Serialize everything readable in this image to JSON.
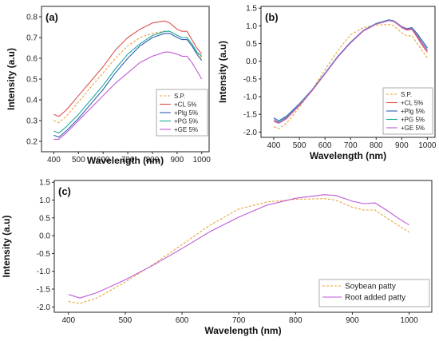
{
  "chart_data": [
    {
      "panel": "(a)",
      "type": "line",
      "xlabel": "Wavelength (nm)",
      "ylabel": "Intensity (a.u)",
      "xlim": [
        350,
        1030
      ],
      "ylim": [
        0.15,
        0.85
      ],
      "xticks": [
        400,
        500,
        600,
        700,
        800,
        900,
        1000
      ],
      "yticks": [
        0.2,
        0.3,
        0.4,
        0.5,
        0.6,
        0.7,
        0.8
      ],
      "legend_position": "bottom-right",
      "x": [
        400,
        420,
        450,
        500,
        550,
        600,
        650,
        700,
        750,
        800,
        850,
        870,
        900,
        920,
        940,
        960,
        980,
        1000
      ],
      "series": [
        {
          "name": "S.P.",
          "color": "#e8a33d",
          "dash": true,
          "values": [
            0.3,
            0.29,
            0.32,
            0.39,
            0.46,
            0.53,
            0.6,
            0.66,
            0.7,
            0.72,
            0.73,
            0.73,
            0.71,
            0.7,
            0.7,
            0.67,
            0.63,
            0.6
          ]
        },
        {
          "name": "+CL 5%",
          "color": "#d9534f",
          "dash": false,
          "values": [
            0.33,
            0.32,
            0.35,
            0.42,
            0.49,
            0.56,
            0.64,
            0.7,
            0.74,
            0.77,
            0.78,
            0.77,
            0.74,
            0.73,
            0.73,
            0.69,
            0.65,
            0.62
          ]
        },
        {
          "name": "+Plg 5%",
          "color": "#2f5fb3",
          "dash": false,
          "values": [
            0.23,
            0.22,
            0.25,
            0.31,
            0.38,
            0.45,
            0.53,
            0.6,
            0.66,
            0.7,
            0.72,
            0.72,
            0.7,
            0.69,
            0.69,
            0.66,
            0.62,
            0.59
          ]
        },
        {
          "name": "+PG 5%",
          "color": "#1fa89a",
          "dash": false,
          "values": [
            0.25,
            0.24,
            0.27,
            0.33,
            0.4,
            0.47,
            0.55,
            0.62,
            0.67,
            0.71,
            0.73,
            0.73,
            0.71,
            0.7,
            0.7,
            0.67,
            0.63,
            0.61
          ]
        },
        {
          "name": "+GE 5%",
          "color": "#c05ad6",
          "dash": false,
          "values": [
            0.21,
            0.21,
            0.24,
            0.3,
            0.36,
            0.42,
            0.48,
            0.53,
            0.58,
            0.61,
            0.63,
            0.63,
            0.62,
            0.61,
            0.61,
            0.58,
            0.54,
            0.5
          ]
        }
      ]
    },
    {
      "panel": "(b)",
      "type": "line",
      "xlabel": "Wavelength (nm)",
      "ylabel": "Intensity (a.u)",
      "xlim": [
        350,
        1030
      ],
      "ylim": [
        -2.15,
        1.55
      ],
      "xticks": [
        400,
        500,
        600,
        700,
        800,
        900,
        1000
      ],
      "yticks": [
        -2.0,
        -1.5,
        -1.0,
        -0.5,
        0.0,
        0.5,
        1.0,
        1.5
      ],
      "legend_position": "bottom-right",
      "x": [
        400,
        420,
        450,
        500,
        550,
        600,
        650,
        700,
        750,
        800,
        850,
        870,
        900,
        920,
        940,
        960,
        980,
        1000
      ],
      "series": [
        {
          "name": "S.P.",
          "color": "#e8a33d",
          "dash": true,
          "values": [
            -1.85,
            -1.9,
            -1.75,
            -1.3,
            -0.8,
            -0.25,
            0.3,
            0.75,
            0.95,
            1.02,
            1.04,
            1.0,
            0.8,
            0.72,
            0.72,
            0.5,
            0.3,
            0.1
          ]
        },
        {
          "name": "+CL 5%",
          "color": "#d9534f",
          "dash": false,
          "values": [
            -1.7,
            -1.75,
            -1.62,
            -1.25,
            -0.83,
            -0.36,
            0.12,
            0.52,
            0.85,
            1.05,
            1.15,
            1.12,
            0.95,
            0.88,
            0.9,
            0.68,
            0.45,
            0.25
          ]
        },
        {
          "name": "+Plg 5%",
          "color": "#2f5fb3",
          "dash": false,
          "values": [
            -1.6,
            -1.68,
            -1.55,
            -1.2,
            -0.8,
            -0.34,
            0.14,
            0.54,
            0.87,
            1.07,
            1.17,
            1.14,
            0.98,
            0.92,
            0.95,
            0.78,
            0.58,
            0.38
          ]
        },
        {
          "name": "+PG 5%",
          "color": "#1fa89a",
          "dash": false,
          "values": [
            -1.65,
            -1.72,
            -1.58,
            -1.22,
            -0.81,
            -0.35,
            0.13,
            0.53,
            0.86,
            1.06,
            1.16,
            1.13,
            0.97,
            0.9,
            0.93,
            0.74,
            0.52,
            0.32
          ]
        },
        {
          "name": "+GE 5%",
          "color": "#c05ad6",
          "dash": false,
          "values": [
            -1.65,
            -1.75,
            -1.6,
            -1.24,
            -0.82,
            -0.36,
            0.12,
            0.52,
            0.86,
            1.05,
            1.15,
            1.13,
            0.97,
            0.9,
            0.92,
            0.72,
            0.5,
            0.3
          ]
        }
      ]
    },
    {
      "panel": "(c)",
      "type": "line",
      "xlabel": "Wavelength (nm)",
      "ylabel": "Intensity (a.u)",
      "xlim": [
        375,
        1040
      ],
      "ylim": [
        -2.15,
        1.55
      ],
      "xticks": [
        400,
        500,
        600,
        700,
        800,
        900,
        1000
      ],
      "yticks": [
        -2.0,
        -1.5,
        -1.0,
        -0.5,
        0.0,
        0.5,
        1.0,
        1.5
      ],
      "legend_position": "bottom-right",
      "x": [
        400,
        420,
        450,
        500,
        550,
        600,
        650,
        700,
        750,
        800,
        850,
        870,
        900,
        920,
        940,
        960,
        980,
        1000
      ],
      "series": [
        {
          "name": "Soybean patty",
          "color": "#e8a33d",
          "dash": true,
          "values": [
            -1.85,
            -1.9,
            -1.75,
            -1.3,
            -0.8,
            -0.25,
            0.3,
            0.75,
            0.95,
            1.02,
            1.04,
            1.0,
            0.8,
            0.72,
            0.72,
            0.5,
            0.3,
            0.1
          ]
        },
        {
          "name": "Root added patty",
          "color": "#c05ad6",
          "dash": false,
          "values": [
            -1.65,
            -1.75,
            -1.6,
            -1.24,
            -0.82,
            -0.36,
            0.12,
            0.52,
            0.86,
            1.05,
            1.15,
            1.13,
            0.97,
            0.9,
            0.92,
            0.72,
            0.5,
            0.3
          ]
        }
      ]
    }
  ]
}
